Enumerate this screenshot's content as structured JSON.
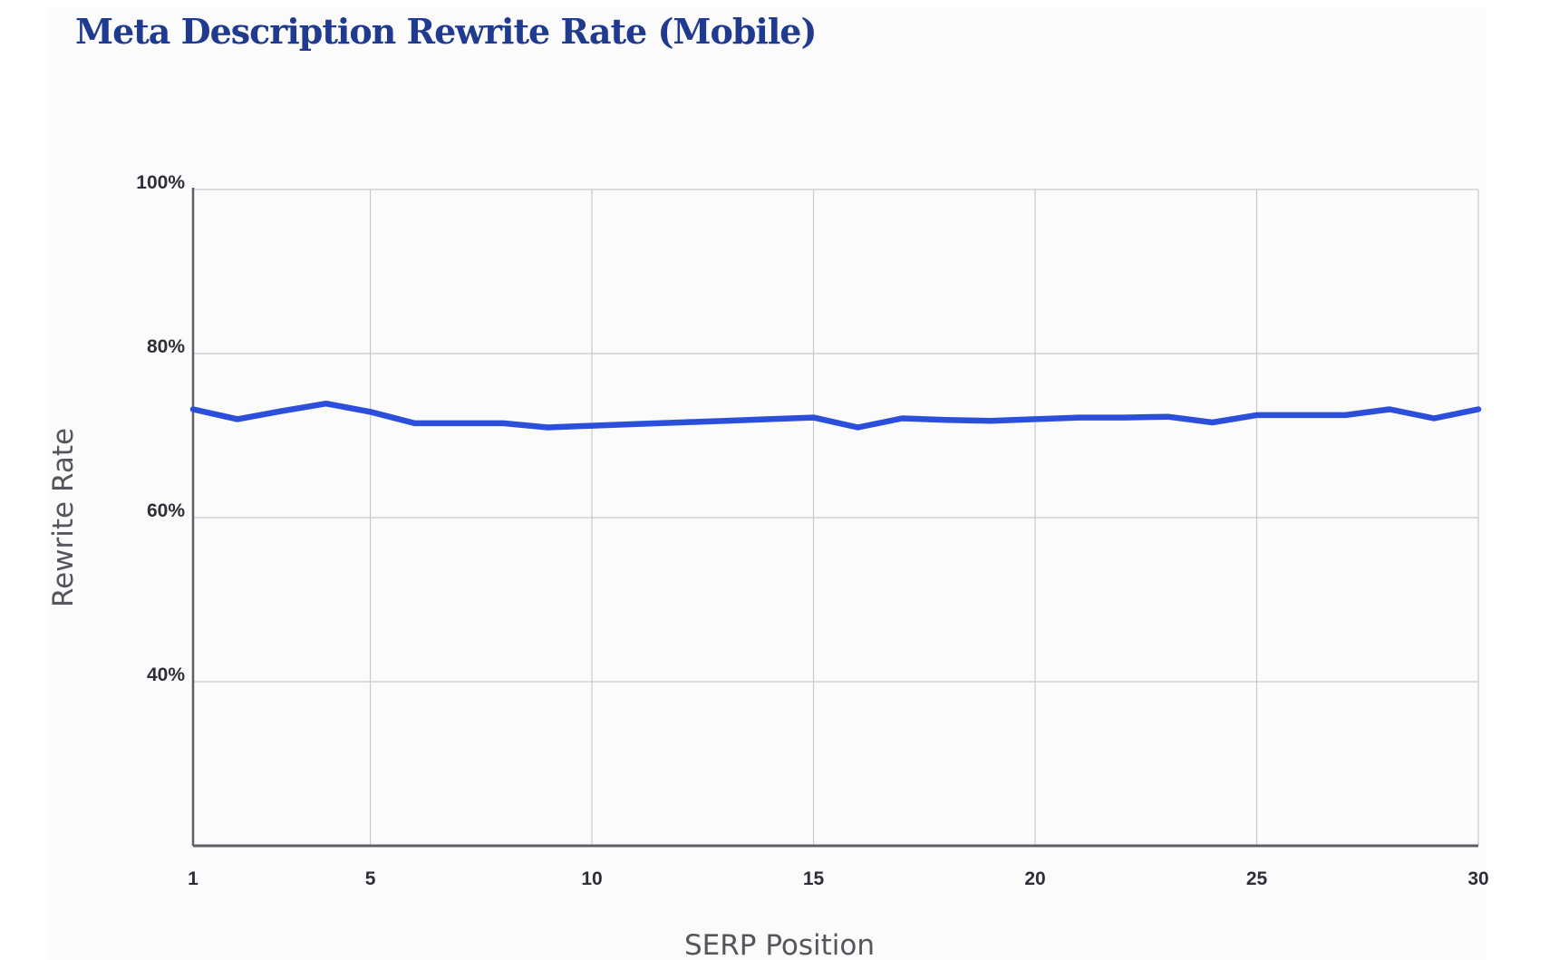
{
  "chart_data": {
    "type": "line",
    "title": "Meta Description Rewrite Rate (Mobile)",
    "xlabel": "SERP Position",
    "ylabel": "Rewrite Rate",
    "xlim": [
      1,
      30
    ],
    "ylim": [
      20,
      100
    ],
    "x_ticks": [
      1,
      5,
      10,
      15,
      20,
      25,
      30
    ],
    "x_tick_labels": [
      "1",
      "5",
      "10",
      "15",
      "20",
      "25",
      "30"
    ],
    "y_ticks": [
      40,
      60,
      80,
      100
    ],
    "y_tick_labels": [
      "40%",
      "60%",
      "80%",
      "100%"
    ],
    "grid": true,
    "series_color": "#2b4fdb",
    "series": [
      {
        "x": [
          1,
          2,
          3,
          4,
          5,
          6,
          7,
          8,
          9,
          10,
          11,
          12,
          13,
          14,
          15,
          16,
          17,
          18,
          19,
          20,
          21,
          22,
          23,
          24,
          25,
          26,
          27,
          28,
          29,
          30
        ],
        "values": [
          73.2,
          72.0,
          73.0,
          73.9,
          72.9,
          71.5,
          71.5,
          71.5,
          71.0,
          71.2,
          71.4,
          71.6,
          71.8,
          72.0,
          72.2,
          71.0,
          72.1,
          71.9,
          71.8,
          72.0,
          72.2,
          72.2,
          72.3,
          71.6,
          72.5,
          72.5,
          72.5,
          73.2,
          72.1,
          73.2
        ]
      }
    ]
  }
}
